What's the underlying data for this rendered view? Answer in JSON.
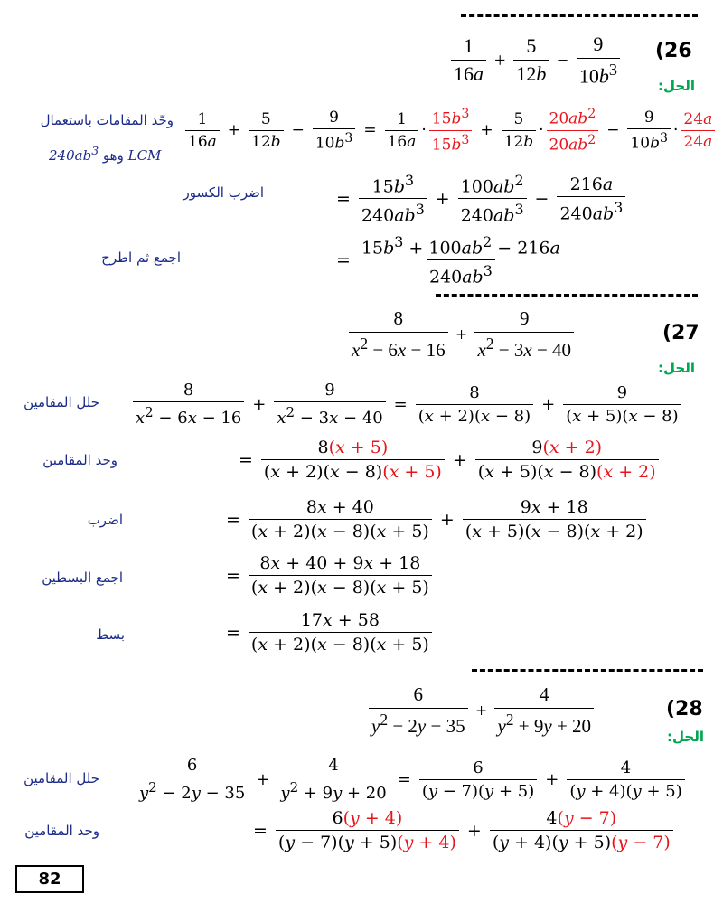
{
  "problems": [
    {
      "number": "(26",
      "solution_label": "الحل:",
      "notes": [
        "وحّد المقامات باستعمال",
        "LCM وهو 240ab³",
        "اضرب الكسور",
        "اجمع ثم اطرح"
      ]
    },
    {
      "number": "(27",
      "solution_label": "الحل:",
      "notes": [
        "حلل المقامين",
        "وحد المقامين",
        "اضرب",
        "اجمع البسطين",
        "بسط"
      ]
    },
    {
      "number": "(28",
      "solution_label": "الحل:",
      "notes": [
        "حلل المقامين",
        "وحد المقامين"
      ]
    }
  ],
  "page_number": "82"
}
